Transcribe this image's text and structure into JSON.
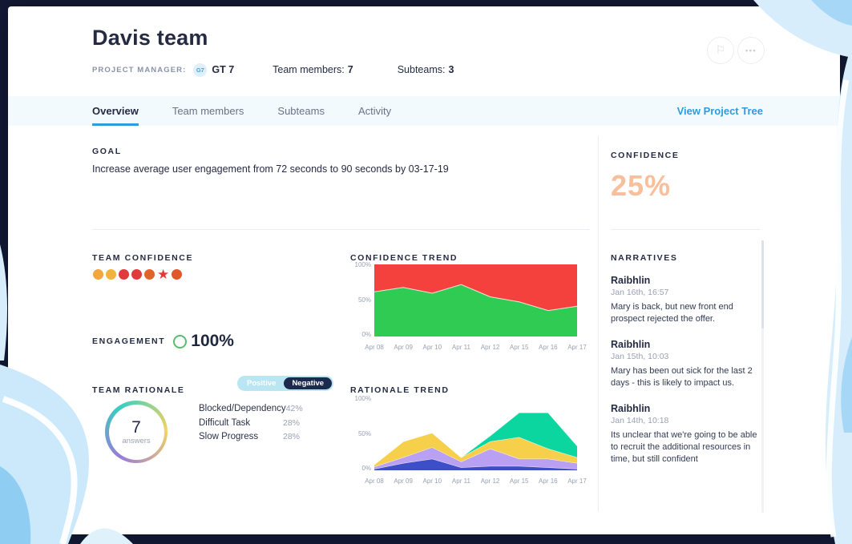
{
  "modal": {
    "title": "Davis team",
    "project_manager_label": "PROJECT MANAGER:",
    "project_manager_badge": "G7",
    "project_manager_name": "GT 7",
    "team_members_label": "Team members:",
    "team_members_count": "7",
    "subteams_label": "Subteams:",
    "subteams_count": "3",
    "flag_icon": "⚐",
    "more_icon": "•••"
  },
  "tabs": {
    "items": [
      {
        "label": "Overview",
        "active": true
      },
      {
        "label": "Team members",
        "active": false
      },
      {
        "label": "Subteams",
        "active": false
      },
      {
        "label": "Activity",
        "active": false
      }
    ],
    "view_project_tree": "View Project Tree"
  },
  "goal": {
    "heading": "GOAL",
    "text": "Increase average user engagement from 72 seconds to 90 seconds by 03-17-19"
  },
  "team_confidence": {
    "heading": "TEAM CONFIDENCE",
    "marks": [
      {
        "shape": "circle",
        "color": "#F2A63C"
      },
      {
        "shape": "circle",
        "color": "#F2B33C"
      },
      {
        "shape": "circle",
        "color": "#E03A3A"
      },
      {
        "shape": "circle",
        "color": "#E03A3A"
      },
      {
        "shape": "circle",
        "color": "#E2622B"
      },
      {
        "shape": "star",
        "color": "#E03A3A"
      },
      {
        "shape": "circle",
        "color": "#E2562B"
      }
    ]
  },
  "engagement": {
    "heading": "ENGAGEMENT",
    "value": "100%",
    "ring_color": "#54C06E"
  },
  "team_rationale": {
    "heading": "TEAM RATIONALE",
    "toggle": {
      "positive_label": "Positive",
      "negative_label": "Negative",
      "selected": "Negative",
      "container_color": "#B9E6F2",
      "selected_color": "#1C2A4E"
    },
    "answers_count": "7",
    "answers_label": "answers",
    "ring_colors": [
      "#9B7BD8",
      "#38CFC0",
      "#F4D362"
    ],
    "breakdown": [
      {
        "label": "Blocked/Dependency",
        "value": "42%"
      },
      {
        "label": "Difficult Task",
        "value": "28%"
      },
      {
        "label": "Slow Progress",
        "value": "28%"
      }
    ]
  },
  "confidence_panel": {
    "heading": "CONFIDENCE",
    "value": "25%",
    "value_color": "#F9BE9C"
  },
  "narratives": {
    "heading": "NARRATIVES",
    "items": [
      {
        "author": "Raibhlin",
        "timestamp": "Jan 16th, 16:57",
        "text": "Mary is back, but new front end prospect rejected the offer."
      },
      {
        "author": "Raibhlin",
        "timestamp": "Jan 15th, 10:03",
        "text": "Mary has been out sick for the last 2 days - this is likely to impact us."
      },
      {
        "author": "Raibhlin",
        "timestamp": "Jan 14th, 10:18",
        "text": "Its unclear that we're going to be able to recruit the additional resources in time, but still confident"
      }
    ]
  },
  "chart_data": [
    {
      "type": "area",
      "title": "CONFIDENCE TREND",
      "x": [
        "Apr 08",
        "Apr 09",
        "Apr 10",
        "Apr 11",
        "Apr 12",
        "Apr 15",
        "Apr 16",
        "Apr 17"
      ],
      "yticks": [
        "100%",
        "50%",
        "0%"
      ],
      "ylim": [
        0,
        100
      ],
      "confidence_values": [
        62,
        68,
        60,
        72,
        55,
        48,
        36,
        42
      ],
      "below_color": "#2FCB53",
      "above_color": "#F5413E"
    },
    {
      "type": "stacked-area",
      "title": "RATIONALE TREND",
      "x": [
        "Apr 08",
        "Apr 09",
        "Apr 10",
        "Apr 11",
        "Apr 12",
        "Apr 15",
        "Apr 16",
        "Apr 17"
      ],
      "yticks": [
        "100%",
        "50%",
        "0%"
      ],
      "ylim": [
        0,
        100
      ],
      "series": [
        {
          "name": "blue",
          "color": "#3D4EC9",
          "values": [
            2,
            10,
            16,
            4,
            6,
            6,
            4,
            2
          ]
        },
        {
          "name": "purple",
          "color": "#B9A0F2",
          "values": [
            3,
            8,
            16,
            8,
            24,
            10,
            12,
            8
          ]
        },
        {
          "name": "yellow",
          "color": "#F6CF4B",
          "values": [
            3,
            22,
            20,
            6,
            10,
            30,
            14,
            8
          ]
        },
        {
          "name": "teal",
          "color": "#0BD6A0",
          "values": [
            0,
            0,
            0,
            0,
            8,
            34,
            50,
            16
          ]
        }
      ]
    }
  ],
  "colors": {
    "accent_blue": "#2D9CDB",
    "text_dark": "#252B42",
    "text_gray": "#98A0B2",
    "tabbar_bg": "#F3FAFE",
    "frame_bg": "#131A36"
  }
}
